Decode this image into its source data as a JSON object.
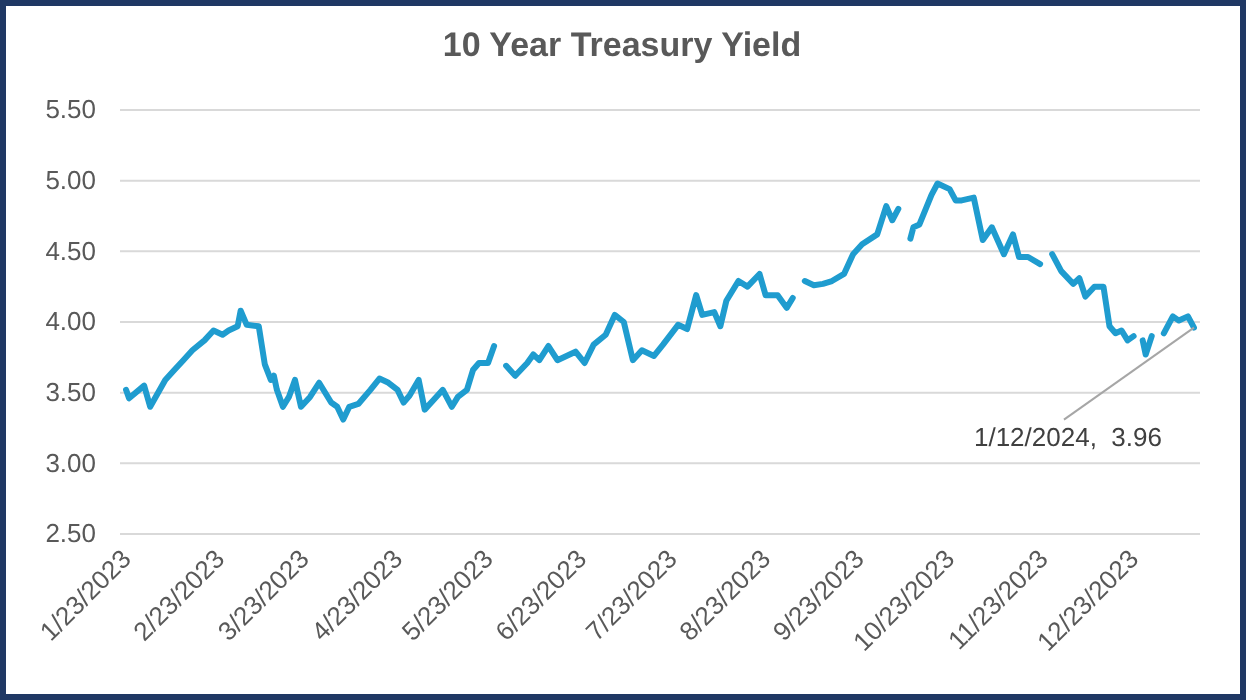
{
  "chart_data": {
    "type": "line",
    "title": "10 Year Treasury Yield",
    "x": [
      "2023-01-23",
      "2023-01-24",
      "2023-01-29",
      "2023-01-31",
      "2023-02-05",
      "2023-02-08",
      "2023-02-11",
      "2023-02-14",
      "2023-02-18",
      "2023-02-21",
      "2023-02-24",
      "2023-02-26",
      "2023-03-01",
      "2023-03-02",
      "2023-03-04",
      "2023-03-08",
      "2023-03-10",
      "2023-03-12",
      "2023-03-13",
      "2023-03-14",
      "2023-03-16",
      "2023-03-18",
      "2023-03-20",
      "2023-03-22",
      "2023-03-25",
      "2023-03-28",
      "2023-04-01",
      "2023-04-03",
      "2023-04-05",
      "2023-04-07",
      "2023-04-10",
      "2023-04-14",
      "2023-04-17",
      "2023-04-20",
      "2023-04-23",
      "2023-04-25",
      "2023-04-27",
      "2023-04-30",
      "2023-05-02",
      "2023-05-05",
      "2023-05-08",
      "2023-05-11",
      "2023-05-13",
      "2023-05-16",
      "2023-05-18",
      "2023-05-20",
      "2023-05-23",
      "2023-05-25",
      "2023-05-27",
      "2023-05-29",
      "2023-06-01",
      "2023-06-05",
      "2023-06-07",
      "2023-06-09",
      "2023-06-12",
      "2023-06-15",
      "2023-06-18",
      "2023-06-21",
      "2023-06-24",
      "2023-06-27",
      "2023-07-01",
      "2023-07-04",
      "2023-07-07",
      "2023-07-10",
      "2023-07-13",
      "2023-07-17",
      "2023-07-20",
      "2023-07-25",
      "2023-07-28",
      "2023-07-31",
      "2023-08-02",
      "2023-08-06",
      "2023-08-08",
      "2023-08-10",
      "2023-08-14",
      "2023-08-17",
      "2023-08-21",
      "2023-08-23",
      "2023-08-27",
      "2023-08-30",
      "2023-09-01",
      "2023-09-03",
      "2023-09-05",
      "2023-09-08",
      "2023-09-11",
      "2023-09-14",
      "2023-09-18",
      "2023-09-21",
      "2023-09-24",
      "2023-09-29",
      "2023-10-02",
      "2023-10-04",
      "2023-10-06",
      "2023-10-08",
      "2023-10-10",
      "2023-10-11",
      "2023-10-13",
      "2023-10-17",
      "2023-10-19",
      "2023-10-23",
      "2023-10-25",
      "2023-10-27",
      "2023-10-31",
      "2023-11-03",
      "2023-11-06",
      "2023-11-10",
      "2023-11-13",
      "2023-11-15",
      "2023-11-18",
      "2023-11-22",
      "2023-11-24",
      "2023-11-26",
      "2023-11-29",
      "2023-12-03",
      "2023-12-05",
      "2023-12-07",
      "2023-12-10",
      "2023-12-13",
      "2023-12-15",
      "2023-12-17",
      "2023-12-19",
      "2023-12-21",
      "2023-12-23",
      "2023-12-24",
      "2023-12-26",
      "2023-12-27",
      "2023-12-29",
      "2023-12-31",
      "2024-01-02",
      "2024-01-05",
      "2024-01-07",
      "2024-01-10",
      "2024-01-12"
    ],
    "series": [
      {
        "color": "#1f9ccf",
        "values": [
          3.52,
          3.46,
          3.55,
          3.4,
          3.59,
          3.66,
          3.73,
          3.8,
          3.87,
          3.94,
          3.91,
          3.94,
          3.97,
          4.08,
          3.98,
          3.97,
          3.7,
          3.59,
          3.62,
          3.52,
          3.4,
          3.47,
          3.59,
          3.4,
          3.47,
          3.57,
          3.43,
          3.4,
          3.31,
          3.4,
          3.42,
          3.52,
          3.6,
          3.57,
          3.52,
          3.43,
          3.48,
          3.59,
          3.38,
          3.45,
          3.52,
          3.4,
          3.47,
          3.52,
          3.66,
          3.71,
          3.71,
          3.83,
          null,
          3.69,
          3.62,
          3.71,
          3.77,
          3.73,
          3.83,
          3.73,
          3.76,
          3.79,
          3.71,
          3.84,
          3.91,
          4.05,
          4.0,
          3.73,
          3.8,
          3.76,
          3.84,
          3.98,
          3.95,
          4.19,
          4.05,
          4.07,
          3.97,
          4.15,
          4.29,
          4.25,
          4.34,
          4.19,
          4.19,
          4.1,
          4.17,
          null,
          4.29,
          4.26,
          4.27,
          4.29,
          4.34,
          4.48,
          4.55,
          4.62,
          4.82,
          4.72,
          4.8,
          null,
          4.59,
          4.67,
          4.69,
          4.9,
          4.98,
          4.94,
          4.86,
          4.86,
          4.88,
          4.58,
          4.67,
          4.48,
          4.62,
          4.46,
          4.46,
          4.41,
          null,
          4.48,
          4.36,
          4.27,
          4.31,
          4.18,
          4.25,
          4.25,
          3.97,
          3.92,
          3.94,
          3.87,
          3.9,
          null,
          3.87,
          3.77,
          3.9,
          null,
          3.92,
          4.04,
          4.01,
          4.04,
          3.96
        ]
      }
    ],
    "xlim": [
      "2023-01-21",
      "2024-01-14"
    ],
    "xticks": [
      {
        "value": "2023-01-23",
        "label": "1/23/2023"
      },
      {
        "value": "2023-02-23",
        "label": "2/23/2023"
      },
      {
        "value": "2023-03-23",
        "label": "3/23/2023"
      },
      {
        "value": "2023-04-23",
        "label": "4/23/2023"
      },
      {
        "value": "2023-05-23",
        "label": "5/23/2023"
      },
      {
        "value": "2023-06-23",
        "label": "6/23/2023"
      },
      {
        "value": "2023-07-23",
        "label": "7/23/2023"
      },
      {
        "value": "2023-08-23",
        "label": "8/23/2023"
      },
      {
        "value": "2023-09-23",
        "label": "9/23/2023"
      },
      {
        "value": "2023-10-23",
        "label": "10/23/2023"
      },
      {
        "value": "2023-11-23",
        "label": "11/23/2023"
      },
      {
        "value": "2023-12-23",
        "label": "12/23/2023"
      }
    ],
    "ylim": [
      2.5,
      5.5
    ],
    "yticks": [
      {
        "value": 2.5,
        "label": "2.50"
      },
      {
        "value": 3,
        "label": "3.00"
      },
      {
        "value": 3.5,
        "label": "3.50"
      },
      {
        "value": 4,
        "label": "4.00"
      },
      {
        "value": 4.5,
        "label": "4.50"
      },
      {
        "value": 5,
        "label": "5.00"
      },
      {
        "value": 5.5,
        "label": "5.50"
      }
    ],
    "grid": "y",
    "marker": "none",
    "line_style": "solid",
    "annotations": [
      {
        "text": "1/12/2024,  3.96",
        "x": "2024-01-12",
        "y": 3.96
      }
    ]
  }
}
